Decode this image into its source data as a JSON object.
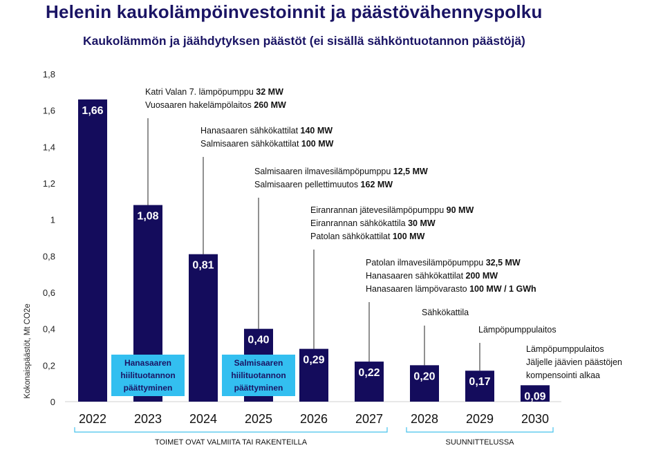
{
  "title": "Helenin kaukolämpöinvestoinnit ja päästövähennyspolku",
  "subtitle": "Kaukolämmön ja jäähdytyksen päästöt (ei sisällä sähköntuotannon päästöjä)",
  "colors": {
    "bar": "#140c5c",
    "highlight": "#33bff0",
    "title": "#1a1464",
    "bracket": "#45c2ec"
  },
  "chart_data": {
    "type": "bar",
    "categories": [
      "2022",
      "2023",
      "2024",
      "2025",
      "2026",
      "2027",
      "2028",
      "2029",
      "2030"
    ],
    "values": [
      1.66,
      1.08,
      0.81,
      0.4,
      0.29,
      0.22,
      0.2,
      0.17,
      0.09
    ],
    "value_labels": [
      "1,66",
      "1,08",
      "0,81",
      "0,40",
      "0,29",
      "0,22",
      "0,20",
      "0,17",
      "0,09"
    ],
    "ylabel": "Kokonaispäästöt, Mt CO2e",
    "xlabel": "",
    "ylim": [
      0,
      1.8
    ],
    "yticks": [
      "0",
      "0,2",
      "0,4",
      "0,6",
      "0,8",
      "1",
      "1,2",
      "1,4",
      "1,6",
      "1,8"
    ],
    "grid": false,
    "highlight_boxes": [
      {
        "category": "2023",
        "lines": [
          "Hanasaaren",
          "hiilituotannon",
          "päättyminen"
        ]
      },
      {
        "category": "2025",
        "lines": [
          "Salmisaaren",
          "hiilituotannon",
          "päättyminen"
        ]
      }
    ],
    "annotations": [
      {
        "category": "2023",
        "lines": [
          {
            "text": "Katri Valan 7. lämpöpumppu ",
            "bold": "32 MW"
          },
          {
            "text": "Vuosaaren hakelämpölaitos ",
            "bold": "260 MW"
          }
        ]
      },
      {
        "category": "2024",
        "lines": [
          {
            "text": "Hanasaaren sähkökattilat ",
            "bold": "140 MW"
          },
          {
            "text": "Salmisaaren sähkökattilat ",
            "bold": "100 MW"
          }
        ]
      },
      {
        "category": "2025",
        "lines": [
          {
            "text": "Salmisaaren ilmavesilämpöpumppu ",
            "bold": "12,5 MW"
          },
          {
            "text": "Salmisaaren pellettimuutos ",
            "bold": "162 MW"
          }
        ]
      },
      {
        "category": "2026",
        "lines": [
          {
            "text": "Eiranrannan jätevesilämpöpumppu ",
            "bold": "90 MW"
          },
          {
            "text": "Eiranrannan sähkökattila ",
            "bold": "30 MW"
          },
          {
            "text": "Patolan sähkökattilat ",
            "bold": "100 MW"
          }
        ]
      },
      {
        "category": "2027",
        "lines": [
          {
            "text": "Patolan ilmavesilämpöpumppu ",
            "bold": "32,5 MW"
          },
          {
            "text": "Hanasaaren sähkökattilat ",
            "bold": "200 MW"
          },
          {
            "text": "Hanasaaren lämpövarasto ",
            "bold": "100 MW / 1 GWh"
          }
        ]
      },
      {
        "category": "2028",
        "lines": [
          {
            "text": "Sähkökattila",
            "bold": ""
          }
        ]
      },
      {
        "category": "2029",
        "lines": [
          {
            "text": "Lämpöpumppulaitos",
            "bold": ""
          }
        ]
      },
      {
        "category": "2030",
        "lines": [
          {
            "text": "Lämpöpumppulaitos",
            "bold": ""
          },
          {
            "text": "Jäljelle jäävien päästöjen",
            "bold": ""
          },
          {
            "text": "kompensointi alkaa",
            "bold": ""
          }
        ]
      }
    ],
    "groups": [
      {
        "label": "TOIMET OVAT VALMIITA TAI RAKENTEILLA",
        "from": "2022",
        "to": "2027"
      },
      {
        "label": "SUUNNITTELUSSA",
        "from": "2028",
        "to": "2030"
      }
    ]
  }
}
